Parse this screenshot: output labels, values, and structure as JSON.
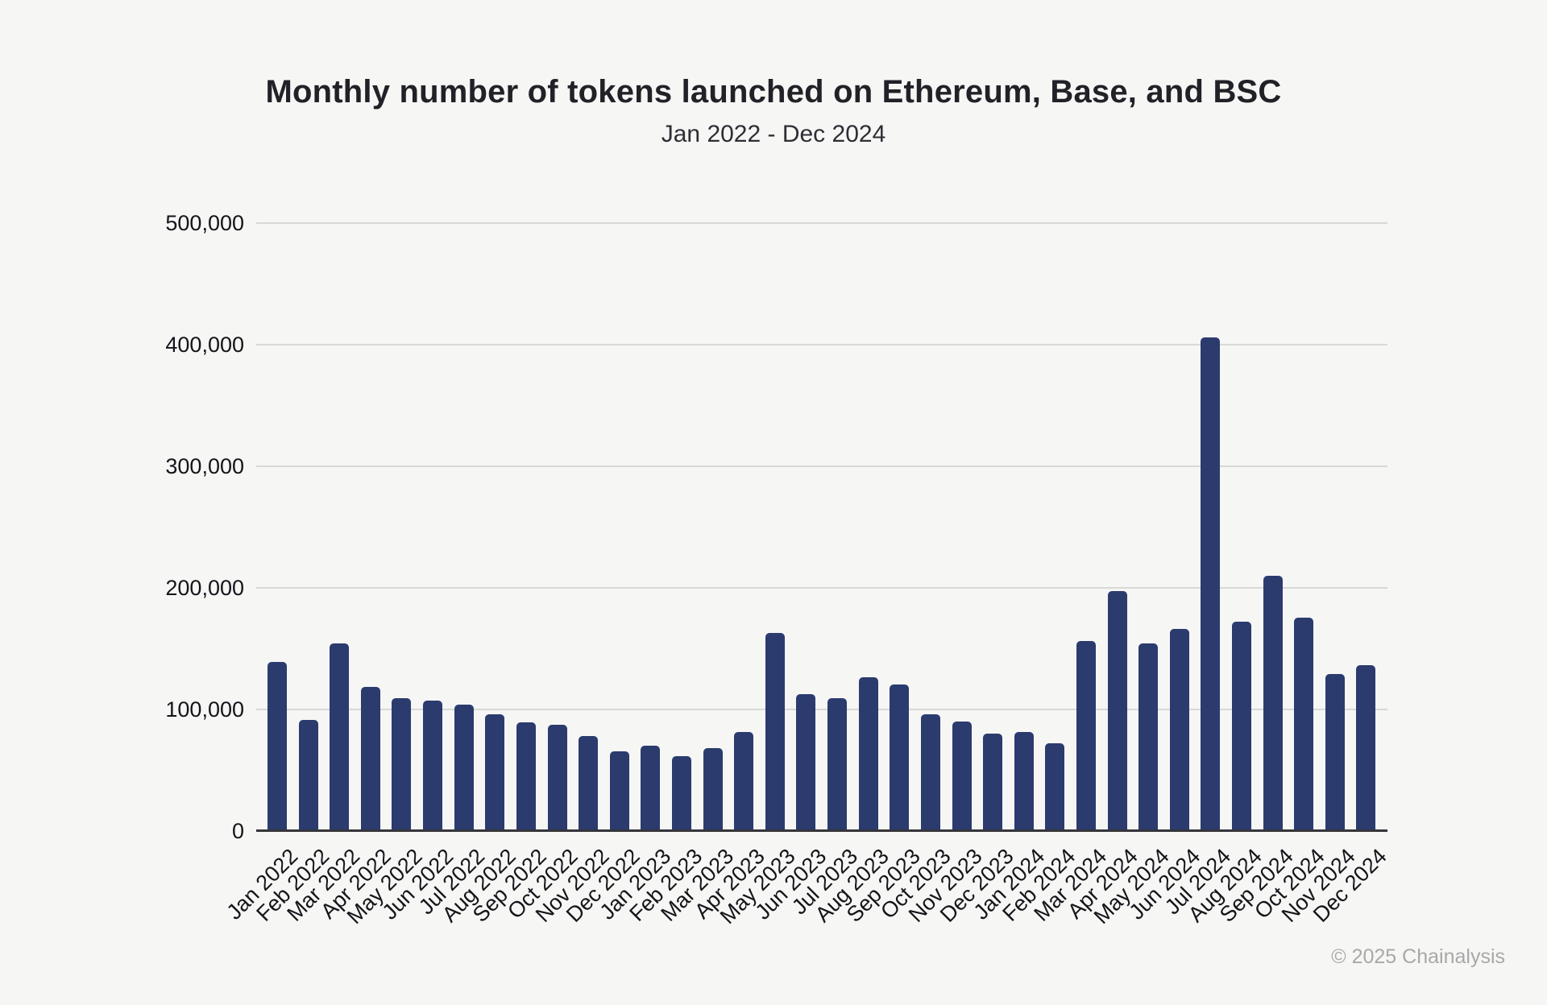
{
  "chart": {
    "title": "Monthly number of tokens launched on Ethereum, Base, and BSC",
    "subtitle": "Jan 2022 - Dec 2024",
    "credit": "© 2025 Chainalysis",
    "colors": {
      "background": "#f6f6f5",
      "bar": "#2b3b6e",
      "gridline": "#d8d8d6",
      "axis_line": "#35353a",
      "tick_label": "#141419",
      "title": "#212127",
      "credit": "#a8a8a8"
    }
  },
  "chart_data": {
    "type": "bar",
    "title": "Monthly number of tokens launched on Ethereum, Base, and BSC",
    "subtitle": "Jan 2022 - Dec 2024",
    "xlabel": "",
    "ylabel": "",
    "ylim": [
      0,
      500000
    ],
    "yticks": [
      0,
      100000,
      200000,
      300000,
      400000,
      500000
    ],
    "grid": "horizontal",
    "legend": "none",
    "categories": [
      "Jan 2022",
      "Feb 2022",
      "Mar 2022",
      "Apr 2022",
      "May 2022",
      "Jun 2022",
      "Jul 2022",
      "Aug 2022",
      "Sep 2022",
      "Oct 2022",
      "Nov 2022",
      "Dec 2022",
      "Jan 2023",
      "Feb 2023",
      "Mar 2023",
      "Apr 2023",
      "May 2023",
      "Jun 2023",
      "Jul 2023",
      "Aug 2023",
      "Sep 2023",
      "Oct 2023",
      "Nov 2023",
      "Dec 2023",
      "Jan 2024",
      "Feb 2024",
      "Mar 2024",
      "Apr 2024",
      "May 2024",
      "Jun 2024",
      "Jul 2024",
      "Aug 2024",
      "Sep 2024",
      "Oct 2024",
      "Nov 2024",
      "Dec 2024"
    ],
    "values": [
      139000,
      91000,
      154000,
      118000,
      109000,
      107000,
      104000,
      96000,
      89000,
      87000,
      78000,
      65000,
      70000,
      61000,
      68000,
      81000,
      163000,
      112000,
      109000,
      126000,
      120000,
      96000,
      90000,
      80000,
      81000,
      72000,
      156000,
      197000,
      154000,
      166000,
      406000,
      172000,
      210000,
      175000,
      129000,
      136000
    ]
  }
}
